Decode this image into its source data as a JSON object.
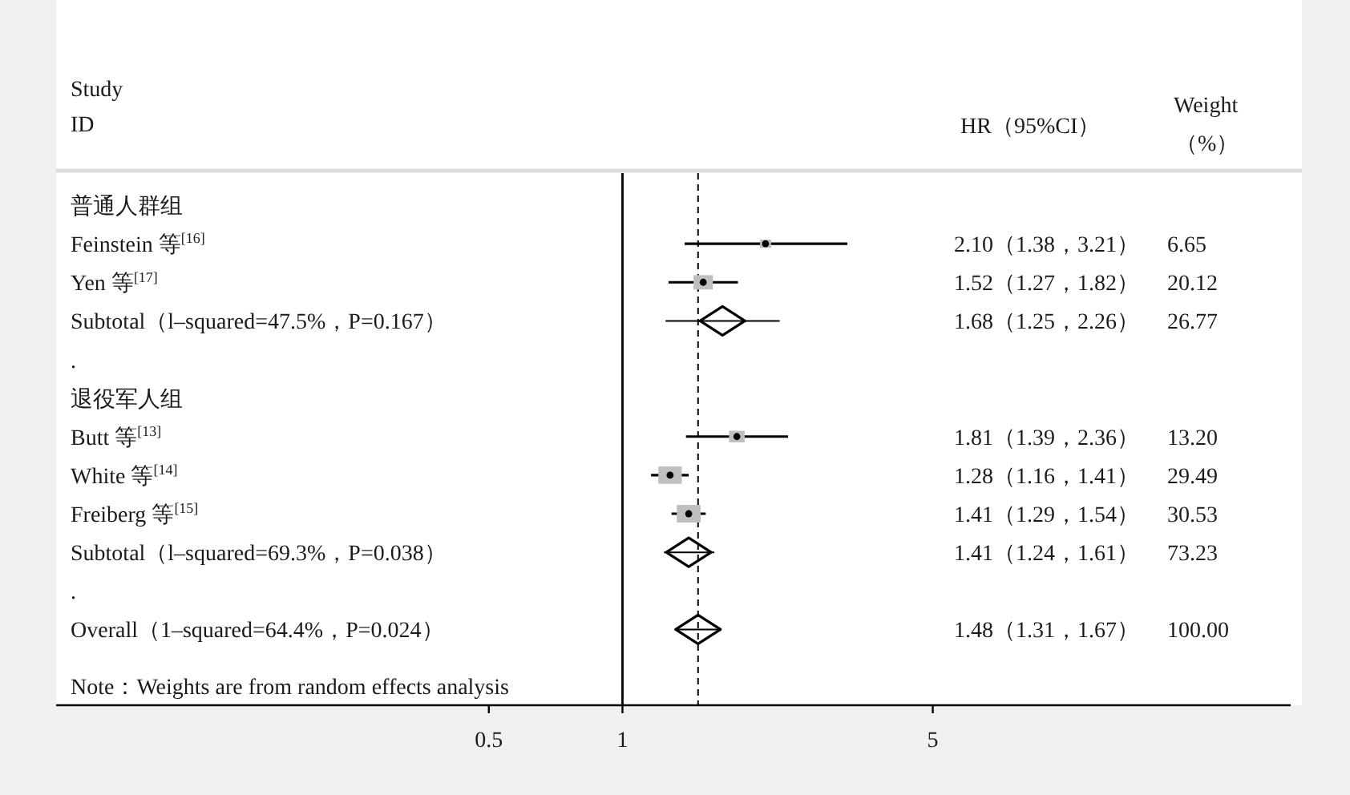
{
  "chart_data": [
    {
      "type": "scatter",
      "orientation": "horizontal",
      "log": "x",
      "ylabel": "Study ID",
      "categories": [
        "普通人群组",
        "Feinstein 等$^{[16]}$",
        "Yen 等$^{[17]}$",
        "Subtotal（l–squared=47.5%，P=0.167）",
        ".",
        "退役军人组",
        "Butt 等$^{[13]}$",
        "White 等$^{[14]}$",
        "Freiberg 等$^{[15]}$",
        "Subtotal（l–squared=69.3%，P=0.038）",
        ".",
        "Overall（1–squared=64.4%，P=0.024）"
      ],
      "xlim": [
        0.053,
        32
      ],
      "xticks": [
        0.5,
        1,
        5
      ],
      "series": [
        {
          "marker": "square",
          "color": "#bfbfbf",
          "values": [
            null,
            2.1,
            1.52,
            null,
            null,
            null,
            1.81,
            1.28,
            1.41,
            null,
            null,
            null
          ],
          "errors": [
            null,
            [
              1.38,
              3.21
            ],
            [
              1.27,
              1.82
            ],
            null,
            null,
            null,
            [
              1.39,
              2.36
            ],
            [
              1.16,
              1.41
            ],
            [
              1.29,
              1.54
            ],
            null,
            null,
            null
          ],
          "sizes": [
            null,
            0.22,
            0.66,
            null,
            null,
            null,
            0.43,
            0.97,
            1,
            null,
            null,
            null
          ]
        },
        {
          "marker": "diamond",
          "color": "#000000",
          "values": [
            null,
            null,
            null,
            1.68,
            null,
            null,
            null,
            null,
            null,
            1.41,
            null,
            1.48
          ],
          "errors": [
            null,
            null,
            null,
            [
              1.25,
              2.26
            ],
            null,
            null,
            null,
            null,
            null,
            [
              1.24,
              1.61
            ],
            null,
            [
              1.31,
              1.67
            ]
          ]
        }
      ],
      "ref_lines": [
        {
          "axis": "x",
          "value": 1,
          "color": "#000000",
          "line_style": "solid"
        },
        {
          "axis": "x",
          "value": 1.48,
          "color": "#000000",
          "line_style": "dashed"
        }
      ],
      "annotations": [
        "Note：Weights are from random effects analysis"
      ]
    },
    {
      "type": "other",
      "title": "HR（95%CI）",
      "annotations": [
        "2.10（1.38，3.21）",
        "1.52（1.27，1.82）",
        "1.68（1.25，2.26）",
        "1.81（1.39，2.36）",
        "1.28（1.16，1.41）",
        "1.41（1.29，1.54）",
        "1.41（1.24，1.61）",
        "1.48（1.31，1.67）"
      ]
    },
    {
      "type": "other",
      "title": "Weight",
      "subtitle": "（%）",
      "annotations": [
        "6.65",
        "20.12",
        "26.77",
        "13.20",
        "29.49",
        "30.53",
        "73.23",
        "100.00"
      ]
    }
  ]
}
